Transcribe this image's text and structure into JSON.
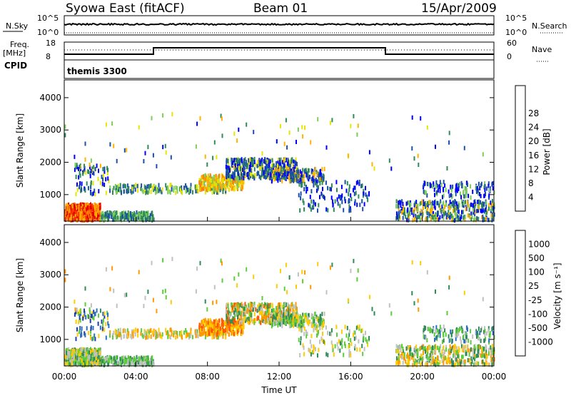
{
  "header": {
    "title": "Syowa East (fitACF)",
    "beam": "Beam 01",
    "date": "15/Apr/2009"
  },
  "top_panels": {
    "nsky_label": "N.Sky",
    "nsearch_label": "N.Search",
    "nsky_ticks": [
      "10^5",
      "10^0"
    ],
    "nsky_right_ticks": [
      "10^5",
      "10^0"
    ],
    "freq_label": "Freq.",
    "freq_unit": "[MHz]",
    "freq_ticks": [
      "18",
      "8"
    ],
    "nave_ticks": [
      "60",
      "0"
    ],
    "nave_label": "Nave",
    "cpid_label": "CPID",
    "cpid_value": "themis 3300"
  },
  "chart_data": [
    {
      "type": "heatmap",
      "name": "power",
      "ylabel": "Slant Range [km]",
      "xlabel": "",
      "ylim": [
        180,
        4550
      ],
      "xlim": [
        0,
        24
      ],
      "x_ticks": [
        0,
        4,
        8,
        12,
        16,
        20,
        24
      ],
      "y_ticks": [
        1000,
        2000,
        3000,
        4000
      ],
      "colorbar": {
        "label": "Power [dB]",
        "ticks": [
          "4",
          "8",
          "12",
          "16",
          "20",
          "24",
          "28"
        ],
        "colors": [
          "#0000ff",
          "#1c4fa8",
          "#2e8b57",
          "#7ccd5a",
          "#e6e600",
          "#ffb300",
          "#ff7f00",
          "#ff3300",
          "#e00000"
        ]
      }
    },
    {
      "type": "heatmap",
      "name": "velocity",
      "ylabel": "Slant Range [km]",
      "xlabel": "Time UT",
      "ylim": [
        180,
        4550
      ],
      "xlim": [
        0,
        24
      ],
      "x_ticks": [
        0,
        4,
        8,
        12,
        16,
        20,
        24
      ],
      "x_tick_labels": [
        "00:00",
        "04:00",
        "08:00",
        "12:00",
        "16:00",
        "20:00",
        "00:00"
      ],
      "y_ticks": [
        1000,
        2000,
        3000,
        4000
      ],
      "colorbar": {
        "label": "Velocity [m s⁻¹]",
        "ticks": [
          "1000",
          "500",
          "100",
          "25",
          "-25",
          "-100",
          "-500",
          "-1000"
        ],
        "colors": [
          "#1c3fb0",
          "#2e6fc0",
          "#2e8b57",
          "#5ccc3a",
          "#c0c0c0",
          "#ffcc00",
          "#ff9900",
          "#ff5500",
          "#e00000"
        ]
      }
    }
  ]
}
